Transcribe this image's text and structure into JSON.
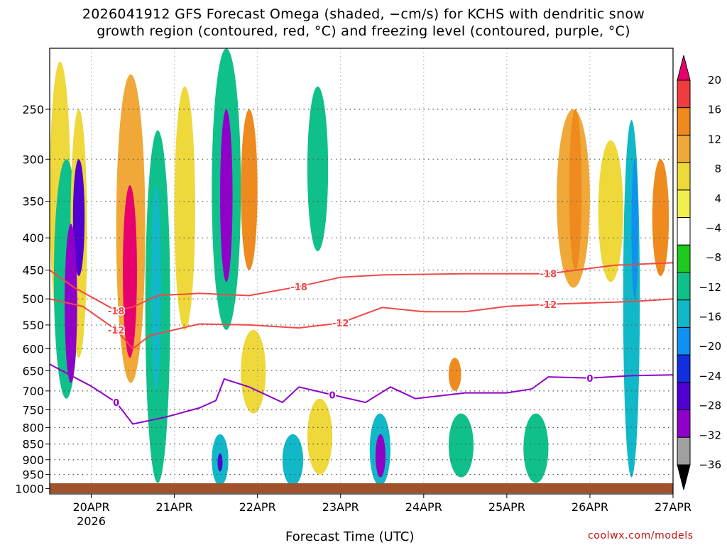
{
  "title_line1": "2026041912 GFS Forecast Omega (shaded, −cm/s) for KCHS with dendritic snow",
  "title_line2": "growth region (contoured, red, °C) and freezing level (contoured, purple, °C)",
  "credit": "coolwx.com/models",
  "colors": {
    "dgz_contour": "#f04848",
    "freezing_contour": "#9000c8",
    "ground": "#a0522d"
  },
  "chart_data": {
    "type": "heatmap",
    "xlabel": "Forecast Time (UTC)",
    "ylabel": "",
    "x_ticks": [
      "20APR",
      "21APR",
      "22APR",
      "23APR",
      "24APR",
      "25APR",
      "26APR",
      "27APR"
    ],
    "x_sublabel": "2026",
    "x_range": [
      "2026-04-19T12",
      "2026-04-27T00"
    ],
    "y_ticks": [
      250,
      300,
      350,
      400,
      450,
      500,
      550,
      600,
      650,
      700,
      750,
      800,
      850,
      900,
      950,
      1000
    ],
    "y_range": [
      1020,
      200
    ],
    "y_scale": "log",
    "grid": true,
    "colorbar": {
      "labels": [
        "20",
        "16",
        "12",
        "8",
        "4",
        "−4",
        "−8",
        "−12",
        "−16",
        "−20",
        "−24",
        "−28",
        "−32",
        "−36"
      ],
      "colors": [
        "#e8006e",
        "#f03c3c",
        "#ee8a1e",
        "#f0a838",
        "#eed83a",
        "#f2ee50",
        "#ffffff",
        "#1ec81e",
        "#10c08a",
        "#10b8c8",
        "#1090f0",
        "#1030e0",
        "#5000d0",
        "#9000c8",
        "#a0a0a0",
        "#000000"
      ]
    },
    "contour_labels": {
      "dgz": [
        "-18",
        "-12"
      ],
      "freezing": [
        "0"
      ]
    },
    "contours": [
      {
        "id": "minus18",
        "label": "-18",
        "points": [
          [
            0,
            450
          ],
          [
            0.3,
            480
          ],
          [
            0.8,
            522
          ],
          [
            1.0,
            515
          ],
          [
            1.3,
            494
          ],
          [
            1.8,
            490
          ],
          [
            2.4,
            494
          ],
          [
            3.0,
            478
          ],
          [
            3.5,
            462
          ],
          [
            4.0,
            458
          ],
          [
            5.0,
            456
          ],
          [
            6.0,
            456
          ],
          [
            6.8,
            442
          ],
          [
            7.5,
            438
          ]
        ]
      },
      {
        "id": "minus12",
        "label": "-12",
        "points": [
          [
            0,
            500
          ],
          [
            0.4,
            514
          ],
          [
            0.8,
            560
          ],
          [
            1.0,
            600
          ],
          [
            1.2,
            572
          ],
          [
            1.8,
            548
          ],
          [
            2.4,
            550
          ],
          [
            3.0,
            556
          ],
          [
            3.5,
            546
          ],
          [
            4.0,
            516
          ],
          [
            4.5,
            524
          ],
          [
            5.0,
            524
          ],
          [
            5.5,
            514
          ],
          [
            6.0,
            510
          ],
          [
            7.0,
            505
          ],
          [
            7.5,
            500
          ]
        ]
      },
      {
        "id": "zero",
        "label": "0",
        "points": [
          [
            0,
            635
          ],
          [
            0.5,
            688
          ],
          [
            0.8,
            730
          ],
          [
            1.0,
            790
          ],
          [
            1.4,
            770
          ],
          [
            1.8,
            745
          ],
          [
            2.0,
            725
          ],
          [
            2.1,
            670
          ],
          [
            2.4,
            690
          ],
          [
            2.8,
            730
          ],
          [
            3.0,
            690
          ],
          [
            3.4,
            710
          ],
          [
            3.8,
            730
          ],
          [
            4.1,
            690
          ],
          [
            4.4,
            720
          ],
          [
            5.0,
            705
          ],
          [
            5.5,
            705
          ],
          [
            5.8,
            695
          ],
          [
            6.0,
            665
          ],
          [
            6.5,
            668
          ],
          [
            7.0,
            662
          ],
          [
            7.5,
            660
          ]
        ]
      }
    ],
    "omega_cells": [
      {
        "x": [
          0.0,
          0.25
        ],
        "p": [
          210,
          560
        ],
        "v": 6
      },
      {
        "x": [
          0.05,
          0.35
        ],
        "p": [
          300,
          720
        ],
        "v": -8
      },
      {
        "x": [
          0.25,
          0.45
        ],
        "p": [
          250,
          620
        ],
        "v": 6
      },
      {
        "x": [
          0.28,
          0.42
        ],
        "p": [
          300,
          460
        ],
        "v": -24
      },
      {
        "x": [
          0.18,
          0.33
        ],
        "p": [
          380,
          680
        ],
        "v": -28
      },
      {
        "x": [
          0.8,
          1.15
        ],
        "p": [
          220,
          680
        ],
        "v": 8
      },
      {
        "x": [
          0.88,
          1.05
        ],
        "p": [
          330,
          620
        ],
        "v": 20
      },
      {
        "x": [
          1.15,
          1.45
        ],
        "p": [
          270,
          980
        ],
        "v": -8
      },
      {
        "x": [
          1.22,
          1.34
        ],
        "p": [
          330,
          700
        ],
        "v": -12
      },
      {
        "x": [
          1.5,
          1.75
        ],
        "p": [
          230,
          560
        ],
        "v": 6
      },
      {
        "x": [
          1.95,
          2.3
        ],
        "p": [
          200,
          560
        ],
        "v": -8
      },
      {
        "x": [
          2.05,
          2.2
        ],
        "p": [
          250,
          470
        ],
        "v": -28
      },
      {
        "x": [
          2.3,
          2.5
        ],
        "p": [
          250,
          450
        ],
        "v": 12
      },
      {
        "x": [
          2.3,
          2.6
        ],
        "p": [
          560,
          760
        ],
        "v": 6
      },
      {
        "x": [
          1.95,
          2.15
        ],
        "p": [
          820,
          990
        ],
        "v": -12
      },
      {
        "x": [
          2.02,
          2.08
        ],
        "p": [
          880,
          940
        ],
        "v": -24
      },
      {
        "x": [
          3.1,
          3.35
        ],
        "p": [
          230,
          420
        ],
        "v": -8
      },
      {
        "x": [
          2.8,
          3.05
        ],
        "p": [
          820,
          990
        ],
        "v": -12
      },
      {
        "x": [
          3.1,
          3.4
        ],
        "p": [
          720,
          950
        ],
        "v": 6
      },
      {
        "x": [
          3.85,
          4.1
        ],
        "p": [
          760,
          990
        ],
        "v": -12
      },
      {
        "x": [
          3.92,
          4.04
        ],
        "p": [
          820,
          960
        ],
        "v": -28
      },
      {
        "x": [
          4.8,
          5.1
        ],
        "p": [
          760,
          960
        ],
        "v": -8
      },
      {
        "x": [
          4.8,
          4.95
        ],
        "p": [
          620,
          700
        ],
        "v": 12
      },
      {
        "x": [
          5.7,
          6.0
        ],
        "p": [
          760,
          980
        ],
        "v": -8
      },
      {
        "x": [
          6.1,
          6.5
        ],
        "p": [
          250,
          480
        ],
        "v": 8
      },
      {
        "x": [
          6.25,
          6.4
        ],
        "p": [
          250,
          450
        ],
        "v": 12
      },
      {
        "x": [
          6.6,
          6.9
        ],
        "p": [
          280,
          470
        ],
        "v": 6
      },
      {
        "x": [
          6.9,
          7.1
        ],
        "p": [
          260,
          960
        ],
        "v": -12
      },
      {
        "x": [
          7.0,
          7.08
        ],
        "p": [
          300,
          500
        ],
        "v": -16
      },
      {
        "x": [
          7.25,
          7.45
        ],
        "p": [
          300,
          460
        ],
        "v": 12
      }
    ]
  }
}
